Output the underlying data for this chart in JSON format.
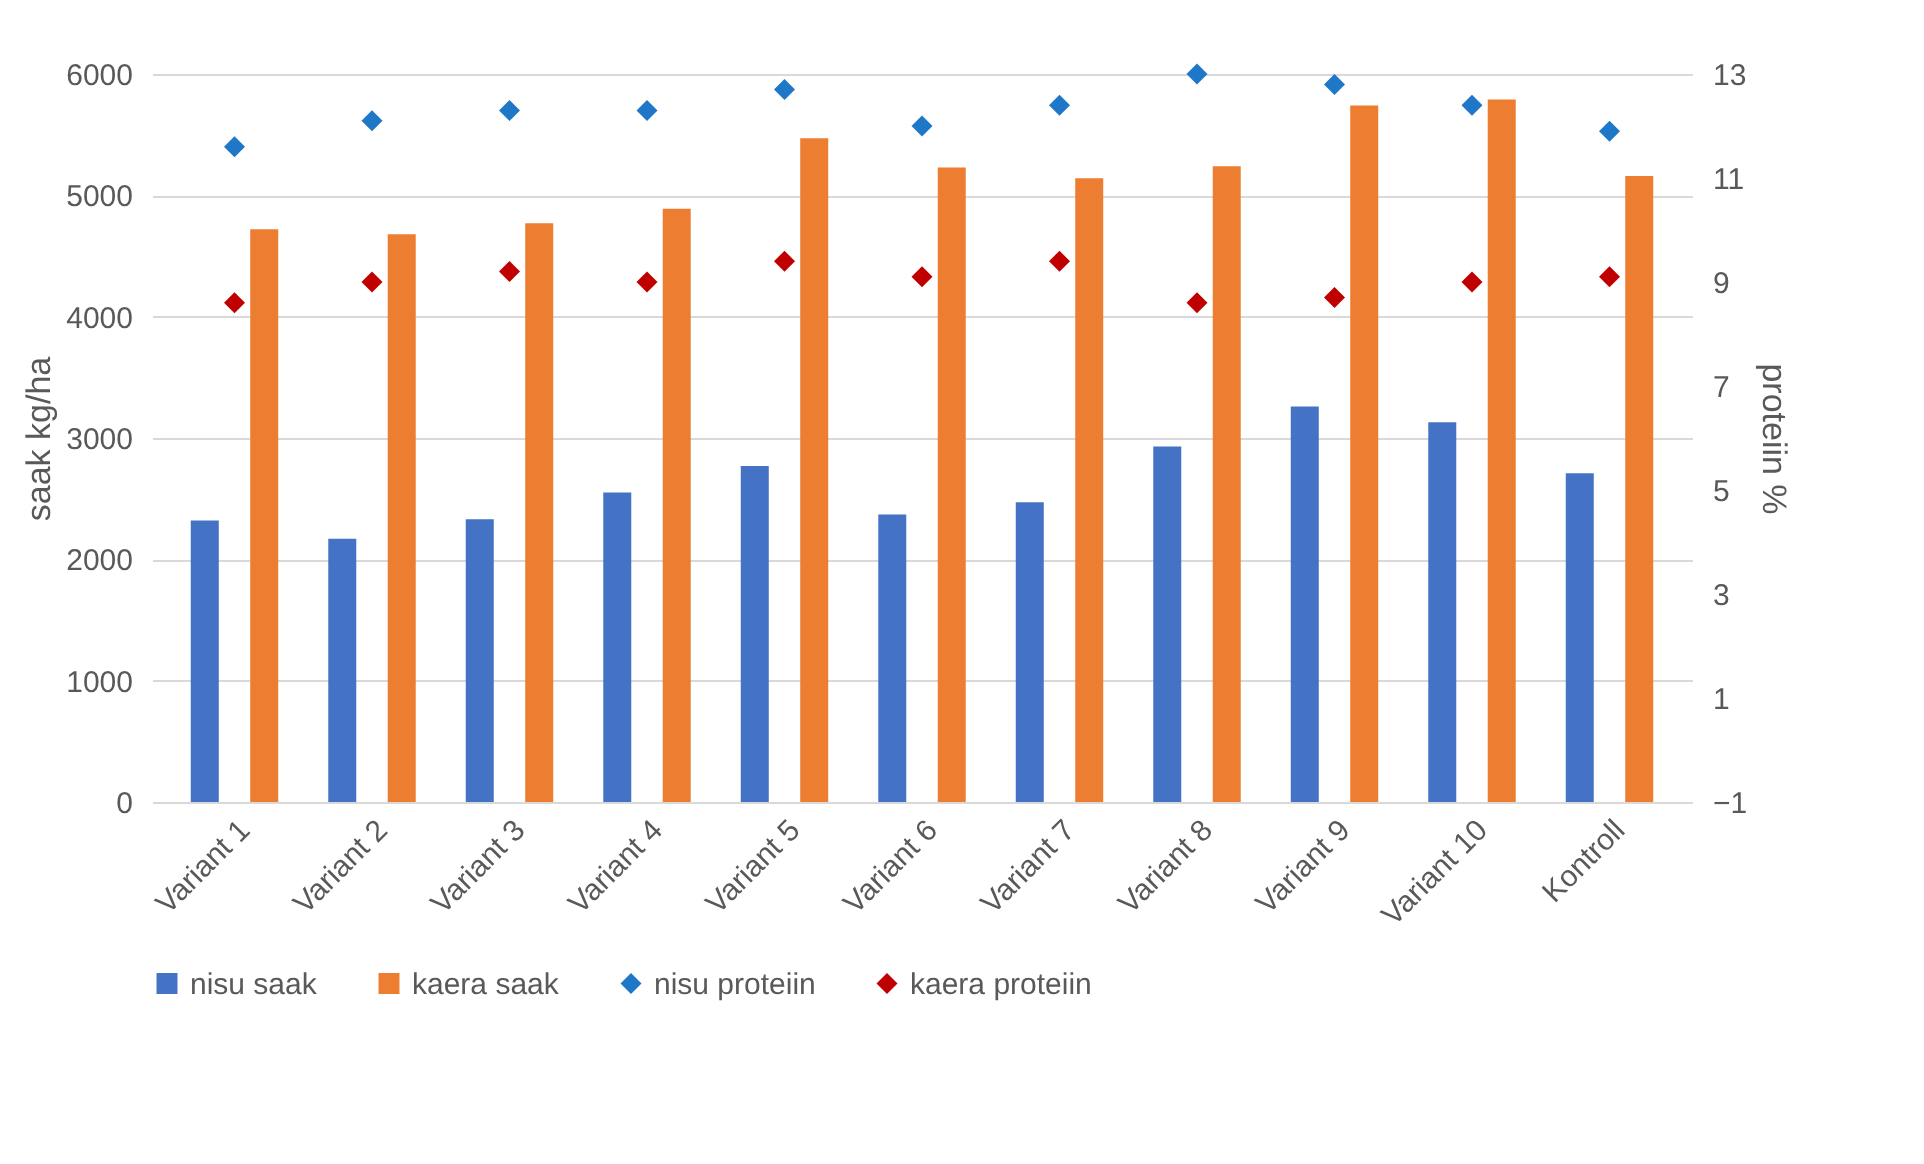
{
  "chart_data": {
    "type": "bar",
    "ylabel": "saak kg/ha",
    "y2label": "proteiin %",
    "categories": [
      "Variant 1",
      "Variant 2",
      "Variant 3",
      "Variant 4",
      "Variant 5",
      "Variant 6",
      "Variant 7",
      "Variant 8",
      "Variant 9",
      "Variant 10",
      "Kontroll"
    ],
    "series": [
      {
        "name": "nisu saak",
        "color": "#4472c4",
        "values": [
          2320,
          2170,
          2330,
          2550,
          2770,
          2370,
          2470,
          2930,
          3260,
          3130,
          2710
        ]
      },
      {
        "name": "kaera saak",
        "color": "#ed7d31",
        "values": [
          4720,
          4680,
          4770,
          4890,
          5470,
          5230,
          5140,
          5240,
          5740,
          5790,
          5160
        ]
      },
      {
        "name": "nisu proteiin",
        "color": "#1f77c8",
        "type": "scatter",
        "axis": "y2",
        "marker": "diamond",
        "values": [
          11.6,
          12.1,
          12.3,
          12.3,
          12.7,
          12.0,
          12.4,
          13.0,
          12.8,
          12.4,
          11.9
        ]
      },
      {
        "name": "kaera proteiin",
        "color": "#c00000",
        "type": "scatter",
        "axis": "y2",
        "marker": "diamond",
        "values": [
          8.6,
          9.0,
          9.2,
          9.0,
          9.4,
          9.1,
          9.4,
          8.6,
          8.7,
          9.0,
          9.1
        ]
      }
    ],
    "ylim": [
      0,
      6000
    ],
    "yticks": [
      0,
      1000,
      2000,
      3000,
      4000,
      5000,
      6000
    ],
    "y2lim": [
      -1,
      13
    ],
    "y2ticks": [
      -1,
      1,
      3,
      5,
      7,
      9,
      11,
      13
    ],
    "grid": "y",
    "legend": "bottom"
  }
}
